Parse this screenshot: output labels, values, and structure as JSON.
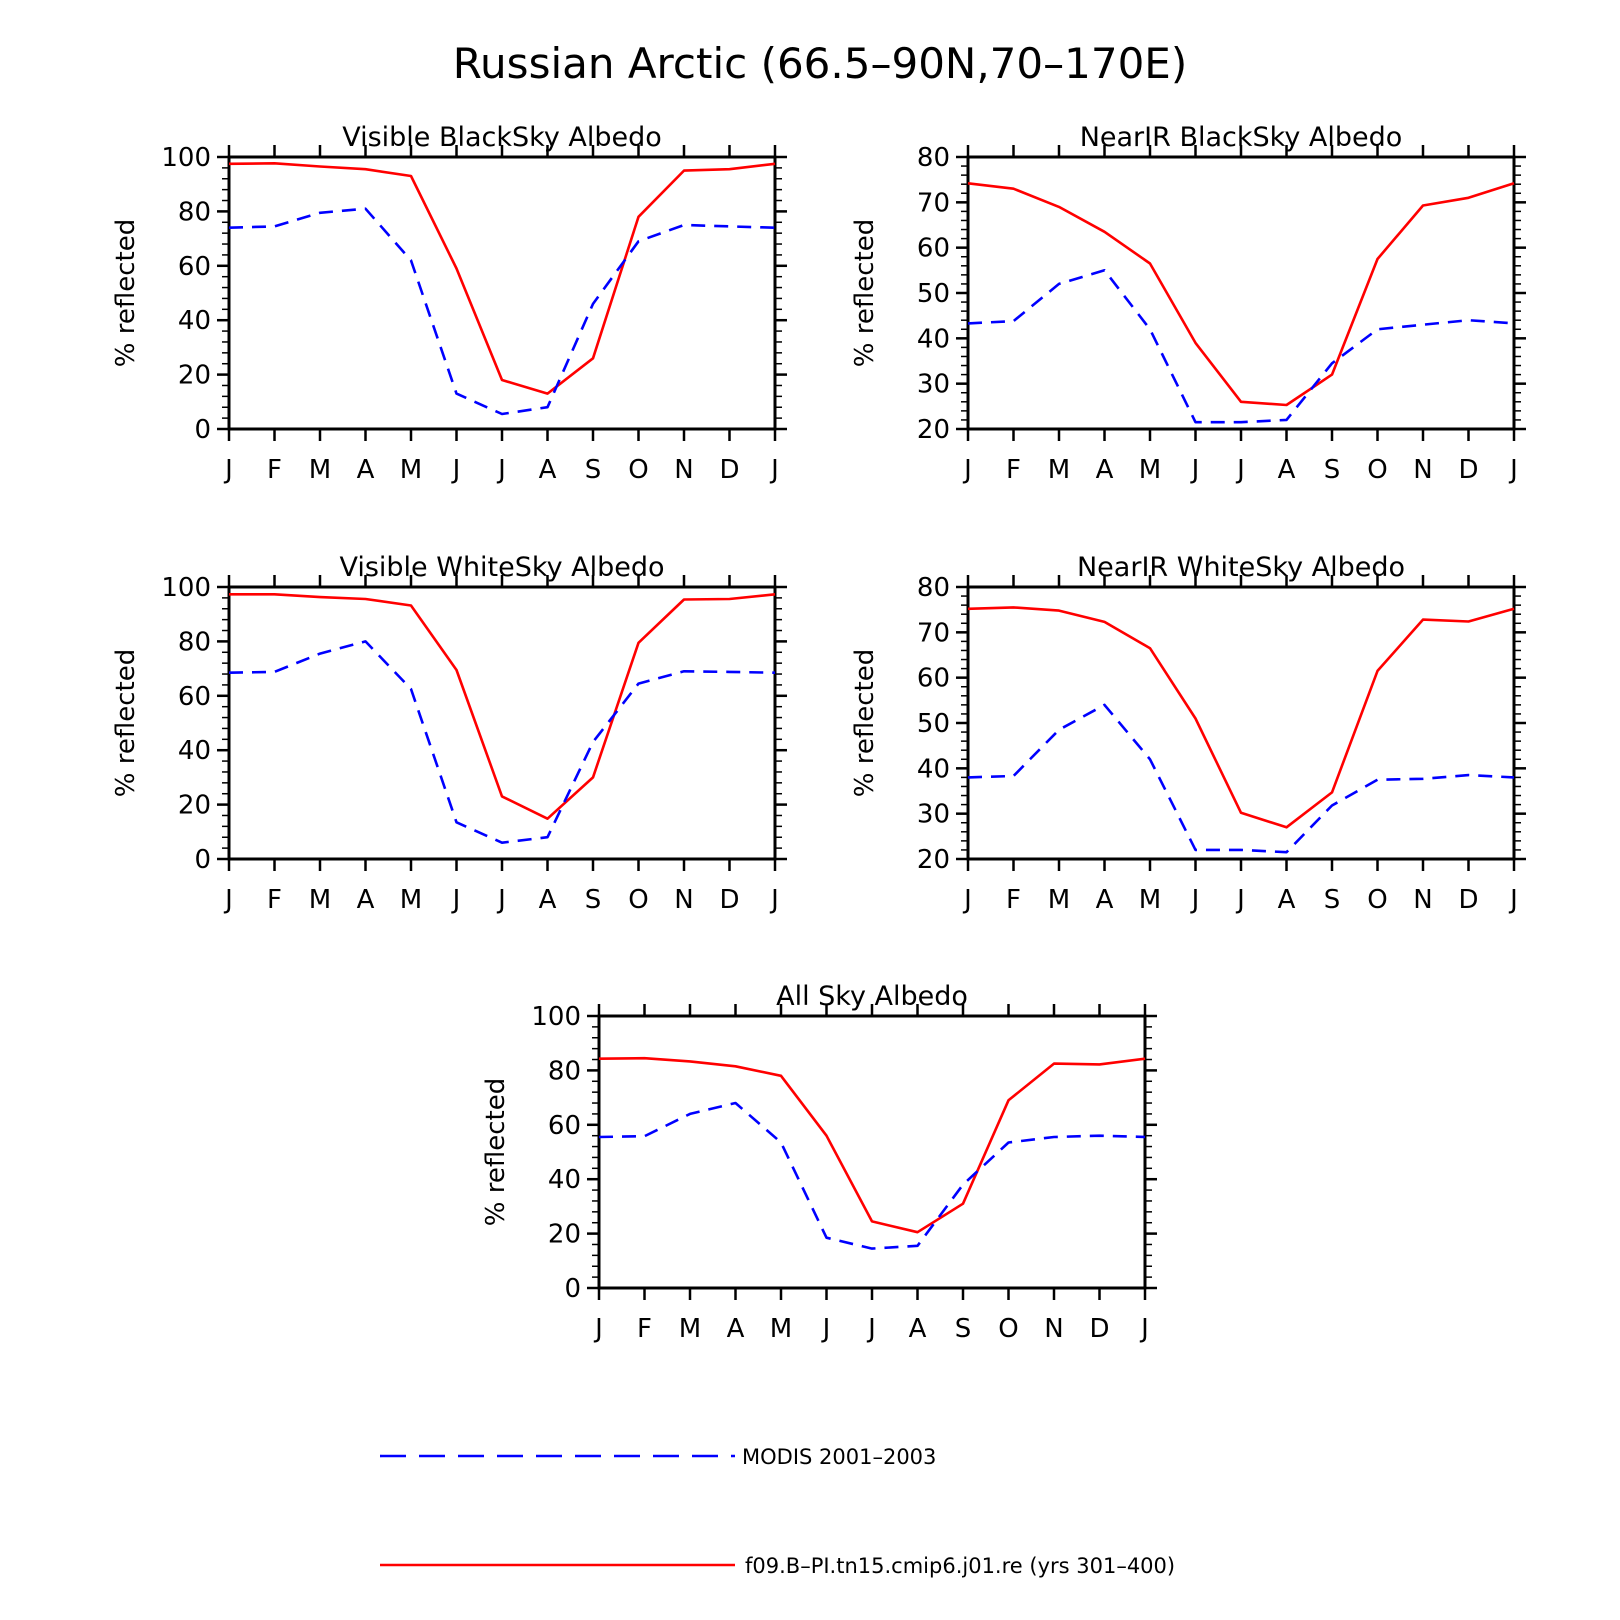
{
  "title": "Russian Arctic (66.5–90N,70–170E)",
  "colors": {
    "model": "#ff0000",
    "obs": "#0000ff"
  },
  "legend": {
    "obs_label": "MODIS 2001–2003",
    "model_label": "f09.B–PI.tn15.cmip6.j01.re (yrs 301–400)"
  },
  "chart_data": [
    {
      "type": "line",
      "title": "Visible BlackSky Albedo",
      "ylabel": "% reflected",
      "xlabel": "",
      "categories": [
        "J",
        "F",
        "M",
        "A",
        "M",
        "J",
        "J",
        "A",
        "S",
        "O",
        "N",
        "D",
        "J"
      ],
      "ylim": [
        0,
        100
      ],
      "yticks": [
        0,
        20,
        40,
        60,
        80,
        100
      ],
      "yticklabels": [
        "0",
        "20",
        "40",
        "60",
        "80",
        "100"
      ],
      "grid": false,
      "series": [
        {
          "name": "f09.B–PI.tn15.cmip6.j01.re (yrs 301–400)",
          "style": "solid",
          "values": [
            97.5,
            97.7,
            96.5,
            95.5,
            93,
            59,
            18,
            13,
            26,
            78,
            95,
            95.5,
            97.5
          ]
        },
        {
          "name": "MODIS 2001–2003",
          "style": "dashed",
          "values": [
            74,
            74.5,
            79.5,
            81,
            62,
            13,
            5.5,
            8,
            46,
            69,
            75,
            74.5,
            74
          ]
        }
      ]
    },
    {
      "type": "line",
      "title": "NearIR BlackSky Albedo",
      "ylabel": "% reflected",
      "xlabel": "",
      "categories": [
        "J",
        "F",
        "M",
        "A",
        "M",
        "J",
        "J",
        "A",
        "S",
        "O",
        "N",
        "D",
        "J"
      ],
      "ylim": [
        20,
        80
      ],
      "yticks": [
        20,
        30,
        40,
        50,
        60,
        70,
        80
      ],
      "yticklabels": [
        "20",
        "30",
        "40",
        "50",
        "60",
        "70",
        "80"
      ],
      "grid": false,
      "series": [
        {
          "name": "f09.B–PI.tn15.cmip6.j01.re (yrs 301–400)",
          "style": "solid",
          "values": [
            74.2,
            73,
            69,
            63.5,
            56.5,
            39,
            26,
            25.3,
            32,
            57.5,
            69.3,
            71,
            74.2
          ]
        },
        {
          "name": "MODIS 2001–2003",
          "style": "dashed",
          "values": [
            43.3,
            43.8,
            52,
            55,
            42,
            21.5,
            21.5,
            22,
            34.5,
            42,
            43,
            44,
            43.3
          ]
        }
      ]
    },
    {
      "type": "line",
      "title": "Visible WhiteSky Albedo",
      "ylabel": "% reflected",
      "xlabel": "",
      "categories": [
        "J",
        "F",
        "M",
        "A",
        "M",
        "J",
        "J",
        "A",
        "S",
        "O",
        "N",
        "D",
        "J"
      ],
      "ylim": [
        0,
        100
      ],
      "yticks": [
        0,
        20,
        40,
        60,
        80,
        100
      ],
      "yticklabels": [
        "0",
        "20",
        "40",
        "60",
        "80",
        "100"
      ],
      "grid": false,
      "series": [
        {
          "name": "f09.B–PI.tn15.cmip6.j01.re (yrs 301–400)",
          "style": "solid",
          "values": [
            97.3,
            97.3,
            96.3,
            95.6,
            93.2,
            69.5,
            23,
            14.8,
            30,
            79.5,
            95.4,
            95.6,
            97.3
          ]
        },
        {
          "name": "MODIS 2001–2003",
          "style": "dashed",
          "values": [
            68.5,
            68.8,
            75.5,
            80,
            62.5,
            13.5,
            6,
            8,
            43,
            64.5,
            69,
            68.8,
            68.5
          ]
        }
      ]
    },
    {
      "type": "line",
      "title": "NearIR WhiteSky Albedo",
      "ylabel": "% reflected",
      "xlabel": "",
      "categories": [
        "J",
        "F",
        "M",
        "A",
        "M",
        "J",
        "J",
        "A",
        "S",
        "O",
        "N",
        "D",
        "J"
      ],
      "ylim": [
        20,
        80
      ],
      "yticks": [
        20,
        30,
        40,
        50,
        60,
        70,
        80
      ],
      "yticklabels": [
        "20",
        "30",
        "40",
        "50",
        "60",
        "70",
        "80"
      ],
      "grid": false,
      "series": [
        {
          "name": "f09.B–PI.tn15.cmip6.j01.re (yrs 301–400)",
          "style": "solid",
          "values": [
            75.2,
            75.5,
            74.8,
            72.3,
            66.5,
            51,
            30.2,
            27,
            34.7,
            61.5,
            72.8,
            72.4,
            75.2
          ]
        },
        {
          "name": "MODIS 2001–2003",
          "style": "dashed",
          "values": [
            38,
            38.3,
            48.5,
            54,
            42,
            22,
            22,
            21.5,
            31.8,
            37.5,
            37.7,
            38.5,
            38
          ]
        }
      ]
    },
    {
      "type": "line",
      "title": "All Sky Albedo",
      "ylabel": "% reflected",
      "xlabel": "",
      "categories": [
        "J",
        "F",
        "M",
        "A",
        "M",
        "J",
        "J",
        "A",
        "S",
        "O",
        "N",
        "D",
        "J"
      ],
      "ylim": [
        0,
        100
      ],
      "yticks": [
        0,
        20,
        40,
        60,
        80,
        100
      ],
      "yticklabels": [
        "0",
        "20",
        "40",
        "60",
        "80",
        "100"
      ],
      "grid": false,
      "series": [
        {
          "name": "f09.B–PI.tn15.cmip6.j01.re (yrs 301–400)",
          "style": "solid",
          "values": [
            84.3,
            84.5,
            83.3,
            81.5,
            78,
            56,
            24.5,
            20.5,
            31,
            69,
            82.5,
            82.2,
            84.3
          ]
        },
        {
          "name": "MODIS 2001–2003",
          "style": "dashed",
          "values": [
            55.5,
            55.8,
            64,
            68,
            53.5,
            18.5,
            14.5,
            15.5,
            38,
            53.5,
            55.5,
            56,
            55.5
          ]
        }
      ]
    }
  ]
}
